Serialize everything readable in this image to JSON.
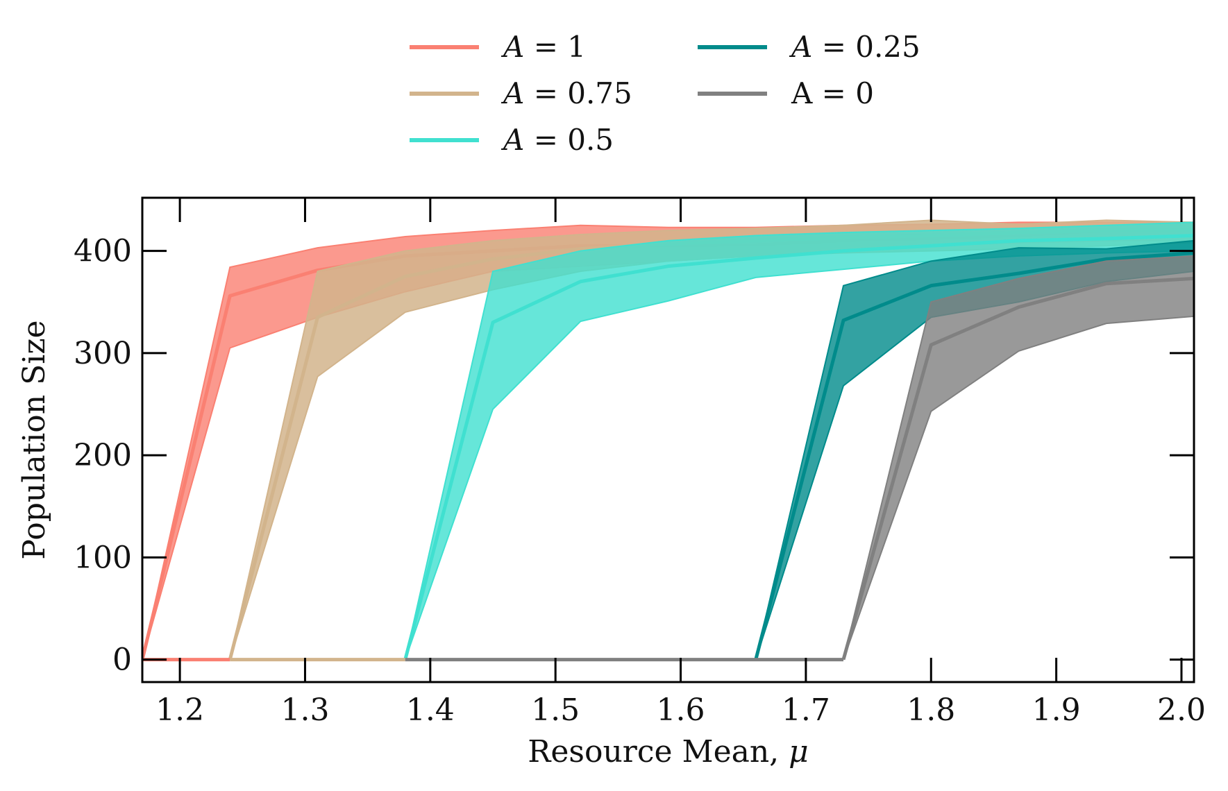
{
  "chart_data": {
    "type": "line",
    "title": "",
    "xlabel": "Resource Mean, μ",
    "ylabel": "Population Size",
    "xlim": [
      1.17,
      2.01
    ],
    "ylim": [
      -22,
      452
    ],
    "xticks": [
      "1.2",
      "1.3",
      "1.4",
      "1.5",
      "1.6",
      "1.7",
      "1.8",
      "1.9",
      "2.0"
    ],
    "yticks": [
      "0",
      "100",
      "200",
      "300",
      "400"
    ],
    "grid": false,
    "legend_position": "top-center",
    "legend_columns": 2,
    "series": [
      {
        "name": "A = 1",
        "label_prefix": "A",
        "label_value": "1",
        "italic": true,
        "color": "#fa8072",
        "fill_opacity": 0.8,
        "line_opacity": 1.0,
        "x": [
          1.17,
          1.24,
          1.31,
          1.38,
          1.45,
          1.52,
          1.59,
          1.66,
          1.73,
          1.8,
          1.87,
          1.94,
          2.01
        ],
        "mean": [
          0,
          356,
          381,
          395,
          400,
          405,
          405,
          406,
          410,
          412,
          415,
          420,
          420
        ],
        "lower": [
          0,
          305,
          335,
          360,
          380,
          385,
          390,
          395,
          400,
          405,
          408,
          410,
          410
        ],
        "upper": [
          0,
          384,
          403,
          414,
          420,
          425,
          423,
          423,
          425,
          426,
          428,
          428,
          428
        ]
      },
      {
        "name": "A = 0.75",
        "label_prefix": "A",
        "label_value": "0.75",
        "italic": true,
        "color": "#d2b48c",
        "fill_opacity": 0.85,
        "line_opacity": 1.0,
        "x": [
          1.24,
          1.31,
          1.38,
          1.45,
          1.52,
          1.59,
          1.66,
          1.73,
          1.8,
          1.87,
          1.94,
          2.01
        ],
        "mean": [
          0,
          335,
          375,
          392,
          402,
          407,
          410,
          413,
          415,
          418,
          420,
          420
        ],
        "lower": [
          0,
          277,
          340,
          362,
          380,
          390,
          395,
          398,
          400,
          402,
          405,
          408
        ],
        "upper": [
          0,
          380,
          400,
          410,
          416,
          420,
          422,
          425,
          430,
          426,
          430,
          428
        ]
      },
      {
        "name": "A = 0.5",
        "label_prefix": "A",
        "label_value": "0.5",
        "italic": true,
        "color": "#40e0d0",
        "fill_opacity": 0.8,
        "line_opacity": 1.0,
        "x": [
          1.38,
          1.45,
          1.52,
          1.59,
          1.66,
          1.73,
          1.8,
          1.87,
          1.94,
          2.01
        ],
        "mean": [
          0,
          330,
          370,
          385,
          393,
          400,
          405,
          410,
          412,
          415
        ],
        "lower": [
          0,
          245,
          331,
          351,
          374,
          382,
          390,
          395,
          398,
          400
        ],
        "upper": [
          0,
          380,
          400,
          410,
          415,
          418,
          420,
          422,
          425,
          428
        ]
      },
      {
        "name": "A = 0.25",
        "label_prefix": "A",
        "label_value": "0.25",
        "italic": true,
        "color": "#008b8b",
        "fill_opacity": 0.8,
        "line_opacity": 1.0,
        "x": [
          1.66,
          1.73,
          1.8,
          1.87,
          1.94,
          2.01
        ],
        "mean": [
          0,
          332,
          366,
          378,
          392,
          398
        ],
        "lower": [
          0,
          268,
          335,
          350,
          370,
          380
        ],
        "upper": [
          0,
          366,
          390,
          403,
          402,
          410
        ]
      },
      {
        "name": "A = 0",
        "label_prefix": "A",
        "label_value": "0",
        "italic": false,
        "color": "#808080",
        "fill_opacity": 0.8,
        "line_opacity": 1.0,
        "x": [
          1.73,
          1.8,
          1.87,
          1.94,
          2.01
        ],
        "mean": [
          0,
          308,
          345,
          368,
          373
        ],
        "lower": [
          0,
          243,
          302,
          329,
          336
        ],
        "upper": [
          0,
          350,
          373,
          390,
          395
        ]
      }
    ],
    "zero_line": {
      "color": "#808080",
      "segments": [
        {
          "color": "#fa8072",
          "x": [
            1.17,
            1.24
          ]
        },
        {
          "color": "#d2b48c",
          "x": [
            1.24,
            1.38
          ]
        },
        {
          "color": "#808080",
          "x": [
            1.38,
            1.73
          ]
        }
      ]
    }
  }
}
